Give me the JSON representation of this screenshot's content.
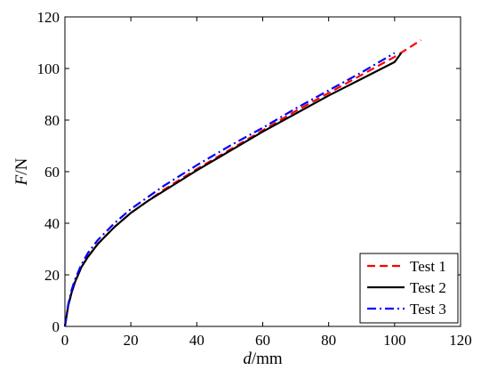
{
  "chart_data": {
    "type": "line",
    "title": "",
    "xlabel": {
      "var": "d",
      "unit": "/mm"
    },
    "ylabel": {
      "var": "F",
      "unit": "/N"
    },
    "xlim": [
      0,
      120
    ],
    "ylim": [
      0,
      120
    ],
    "xticks": [
      0,
      20,
      40,
      60,
      80,
      100,
      120
    ],
    "yticks": [
      0,
      20,
      40,
      60,
      80,
      100,
      120
    ],
    "grid": false,
    "legend_position": "bottom-right",
    "series": [
      {
        "name": "Test 1",
        "color": "#ff0000",
        "style": "dashed",
        "x": [
          0,
          1,
          2,
          3,
          5,
          7,
          10,
          15,
          20,
          25,
          30,
          40,
          50,
          60,
          70,
          80,
          90,
          100,
          108
        ],
        "y": [
          0,
          8,
          13,
          17,
          23,
          27,
          32,
          38.5,
          44,
          48.5,
          53,
          61,
          68.5,
          76,
          83.5,
          90.5,
          97.5,
          104.5,
          111
        ]
      },
      {
        "name": "Test 2",
        "color": "#000000",
        "style": "solid",
        "x": [
          0,
          1,
          2,
          3,
          5,
          7,
          10,
          15,
          20,
          25,
          30,
          40,
          50,
          60,
          70,
          80,
          90,
          100,
          102
        ],
        "y": [
          0,
          8,
          13,
          17,
          23,
          27,
          32,
          38.5,
          44,
          48.5,
          52.5,
          60.5,
          68,
          75.5,
          82.5,
          89.5,
          96,
          102.5,
          106
        ]
      },
      {
        "name": "Test 3",
        "color": "#0000ff",
        "style": "dashdot",
        "x": [
          0,
          1,
          2,
          3,
          5,
          7,
          10,
          15,
          20,
          25,
          30,
          40,
          50,
          60,
          70,
          80,
          90,
          100
        ],
        "y": [
          0,
          8.5,
          14,
          18,
          24,
          28.5,
          33.5,
          40,
          45.5,
          50,
          54.5,
          62.5,
          70,
          77,
          84.5,
          91.5,
          98.5,
          106
        ]
      }
    ]
  }
}
